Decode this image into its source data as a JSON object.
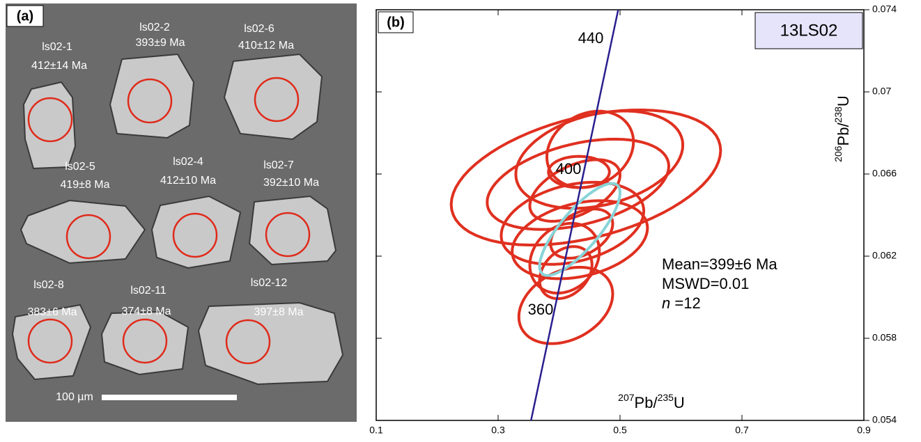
{
  "panel_a": {
    "label": "(a)",
    "grains": [
      {
        "name": "ls02-1",
        "age": "412±14 Ma"
      },
      {
        "name": "ls02-2",
        "age": "393±9 Ma"
      },
      {
        "name": "ls02-6",
        "age": "410±12 Ma"
      },
      {
        "name": "ls02-5",
        "age": "419±8 Ma"
      },
      {
        "name": "ls02-4",
        "age": "412±10 Ma"
      },
      {
        "name": "ls02-7",
        "age": "392±10 Ma"
      },
      {
        "name": "ls02-8",
        "age": "383±6 Ma"
      },
      {
        "name": "ls02-11",
        "age": "374±8 Ma"
      },
      {
        "name": "ls02-12",
        "age": "397±8 Ma"
      }
    ],
    "scale_bar": "100 µm"
  },
  "chart_data": {
    "type": "concordia",
    "panel_label": "(b)",
    "sample": "13LS02",
    "xlabel": {
      "sup1": "207",
      "el1": "Pb/",
      "sup2": "235",
      "el2": "U"
    },
    "ylabel": {
      "sup1": "206",
      "el1": "Pb/",
      "sup2": "238",
      "el2": "U"
    },
    "xlim": [
      0.1,
      0.9
    ],
    "xticks": [
      0.1,
      0.3,
      0.5,
      0.7,
      0.9
    ],
    "ylim": [
      0.054,
      0.074
    ],
    "yticks": [
      0.054,
      0.058,
      0.062,
      0.066,
      0.07,
      0.074
    ],
    "concordia": {
      "x": [
        0.354,
        0.497
      ],
      "y": [
        0.054,
        0.074
      ],
      "color": "#2a1f8f",
      "ages": [
        "440",
        "400",
        "360"
      ]
    },
    "color": "#e03020",
    "mean_color": "#88d4d8",
    "ellipses": [
      {
        "x": 0.444,
        "y": 0.06583,
        "sx": 0.221,
        "sy": 0.00329,
        "rho": 0.4
      },
      {
        "x": 0.466,
        "y": 0.0667,
        "sx": 0.137,
        "sy": 0.00237,
        "rho": 0.3
      },
      {
        "x": 0.451,
        "y": 0.0672,
        "sx": 0.071,
        "sy": 0.00186,
        "rho": 0.2
      },
      {
        "x": 0.4326,
        "y": 0.0661,
        "sx": 0.05,
        "sy": 0.00076,
        "rho": 0
      },
      {
        "x": 0.431,
        "y": 0.0655,
        "sx": 0.149,
        "sy": 0.0022,
        "rho": 0.4
      },
      {
        "x": 0.422,
        "y": 0.0636,
        "sx": 0.117,
        "sy": 0.002,
        "rho": 0.3
      },
      {
        "x": 0.434,
        "y": 0.0628,
        "sx": 0.111,
        "sy": 0.0019,
        "rho": 0.3
      },
      {
        "x": 0.409,
        "y": 0.0619,
        "sx": 0.057,
        "sy": 0.0017,
        "rho": 0.2
      },
      {
        "x": 0.411,
        "y": 0.0612,
        "sx": 0.043,
        "sy": 0.00127,
        "rho": 0.3
      },
      {
        "x": 0.411,
        "y": 0.0596,
        "sx": 0.077,
        "sy": 0.00186,
        "rho": 0.3
      },
      {
        "x": 0.437,
        "y": 0.0631,
        "sx": 0.051,
        "sy": 0.0012,
        "rho": 0.4
      },
      {
        "x": 0.426,
        "y": 0.0652,
        "sx": 0.074,
        "sy": 0.0015,
        "rho": 0.5
      }
    ],
    "mean": {
      "x": 0.434,
      "y": 0.0633,
      "sx": 0.066,
      "sy": 0.00224,
      "rho": 0.8
    },
    "stats": {
      "mean": "Mean=399±6 Ma",
      "mswd": "MSWD=0.01",
      "n_symbol": "n",
      "n_value": " =12"
    }
  }
}
